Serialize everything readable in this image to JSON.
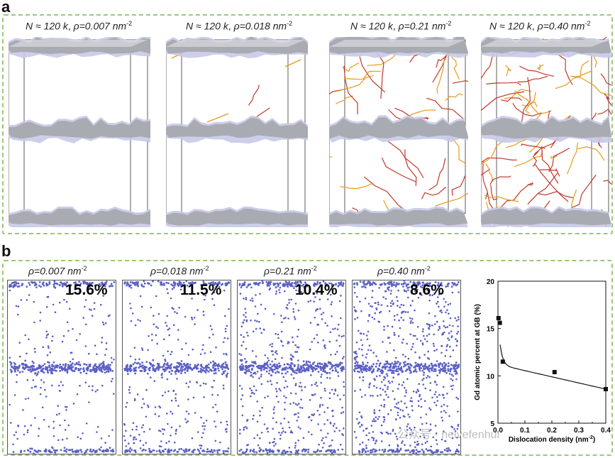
{
  "panel_a": {
    "letter": "a",
    "captions": [
      {
        "prefix": "N ≈ 120 k, ",
        "rho": "ρ=0.007 nm",
        "exp": "-2"
      },
      {
        "prefix": "N ≈ 120 k, ",
        "rho": "ρ=0.018 nm",
        "exp": "-2"
      },
      {
        "prefix": "N ≈ 120 k, ",
        "rho": "ρ=0.21 nm",
        "exp": "-2"
      },
      {
        "prefix": "N ≈ 120 k, ",
        "rho": "ρ=0.40 nm",
        "exp": "-2"
      }
    ],
    "dislocation_density_level": [
      "very low",
      "low",
      "high",
      "very high"
    ],
    "colors": {
      "grain_boundary": "#a9abb2",
      "gb_shadow": "#c7c9e8",
      "dislocation_red": "#c0392b",
      "dislocation_orange": "#e69a1c",
      "box_line": "#333333"
    }
  },
  "panel_b": {
    "letter": "b",
    "captions": [
      {
        "rho": "ρ=0.007 nm",
        "exp": "-2"
      },
      {
        "rho": "ρ=0.018 nm",
        "exp": "-2"
      },
      {
        "rho": "ρ=0.21 nm",
        "exp": "-2"
      },
      {
        "rho": "ρ=0.40 nm",
        "exp": "-2"
      }
    ],
    "percents": [
      "15.6%",
      "11.5%",
      "10.4%",
      "8.6%"
    ],
    "colors": {
      "atom": "#5a5fc4"
    }
  },
  "chart_data": {
    "type": "scatter",
    "xlabel": "Dislocation density (nm",
    "xlabel_exp": "-2",
    "xlabel_close": ")",
    "ylabel": "Gd atomic percent at GB (%)",
    "xlim": [
      0.0,
      0.4
    ],
    "ylim": [
      5,
      20
    ],
    "x_ticks": [
      "0.0",
      "0.1",
      "0.2",
      "0.3",
      "0.4"
    ],
    "y_ticks": [
      "5",
      "10",
      "15",
      "20"
    ],
    "points": [
      {
        "x": 0.002,
        "y": 16.1
      },
      {
        "x": 0.007,
        "y": 15.6
      },
      {
        "x": 0.018,
        "y": 11.5
      },
      {
        "x": 0.21,
        "y": 10.4
      },
      {
        "x": 0.4,
        "y": 8.6
      }
    ],
    "fit_curve": true,
    "grid": false,
    "colors": {
      "marker": "#111111",
      "line": "#111111"
    }
  },
  "watermark": "公众号 · neivefenhui"
}
